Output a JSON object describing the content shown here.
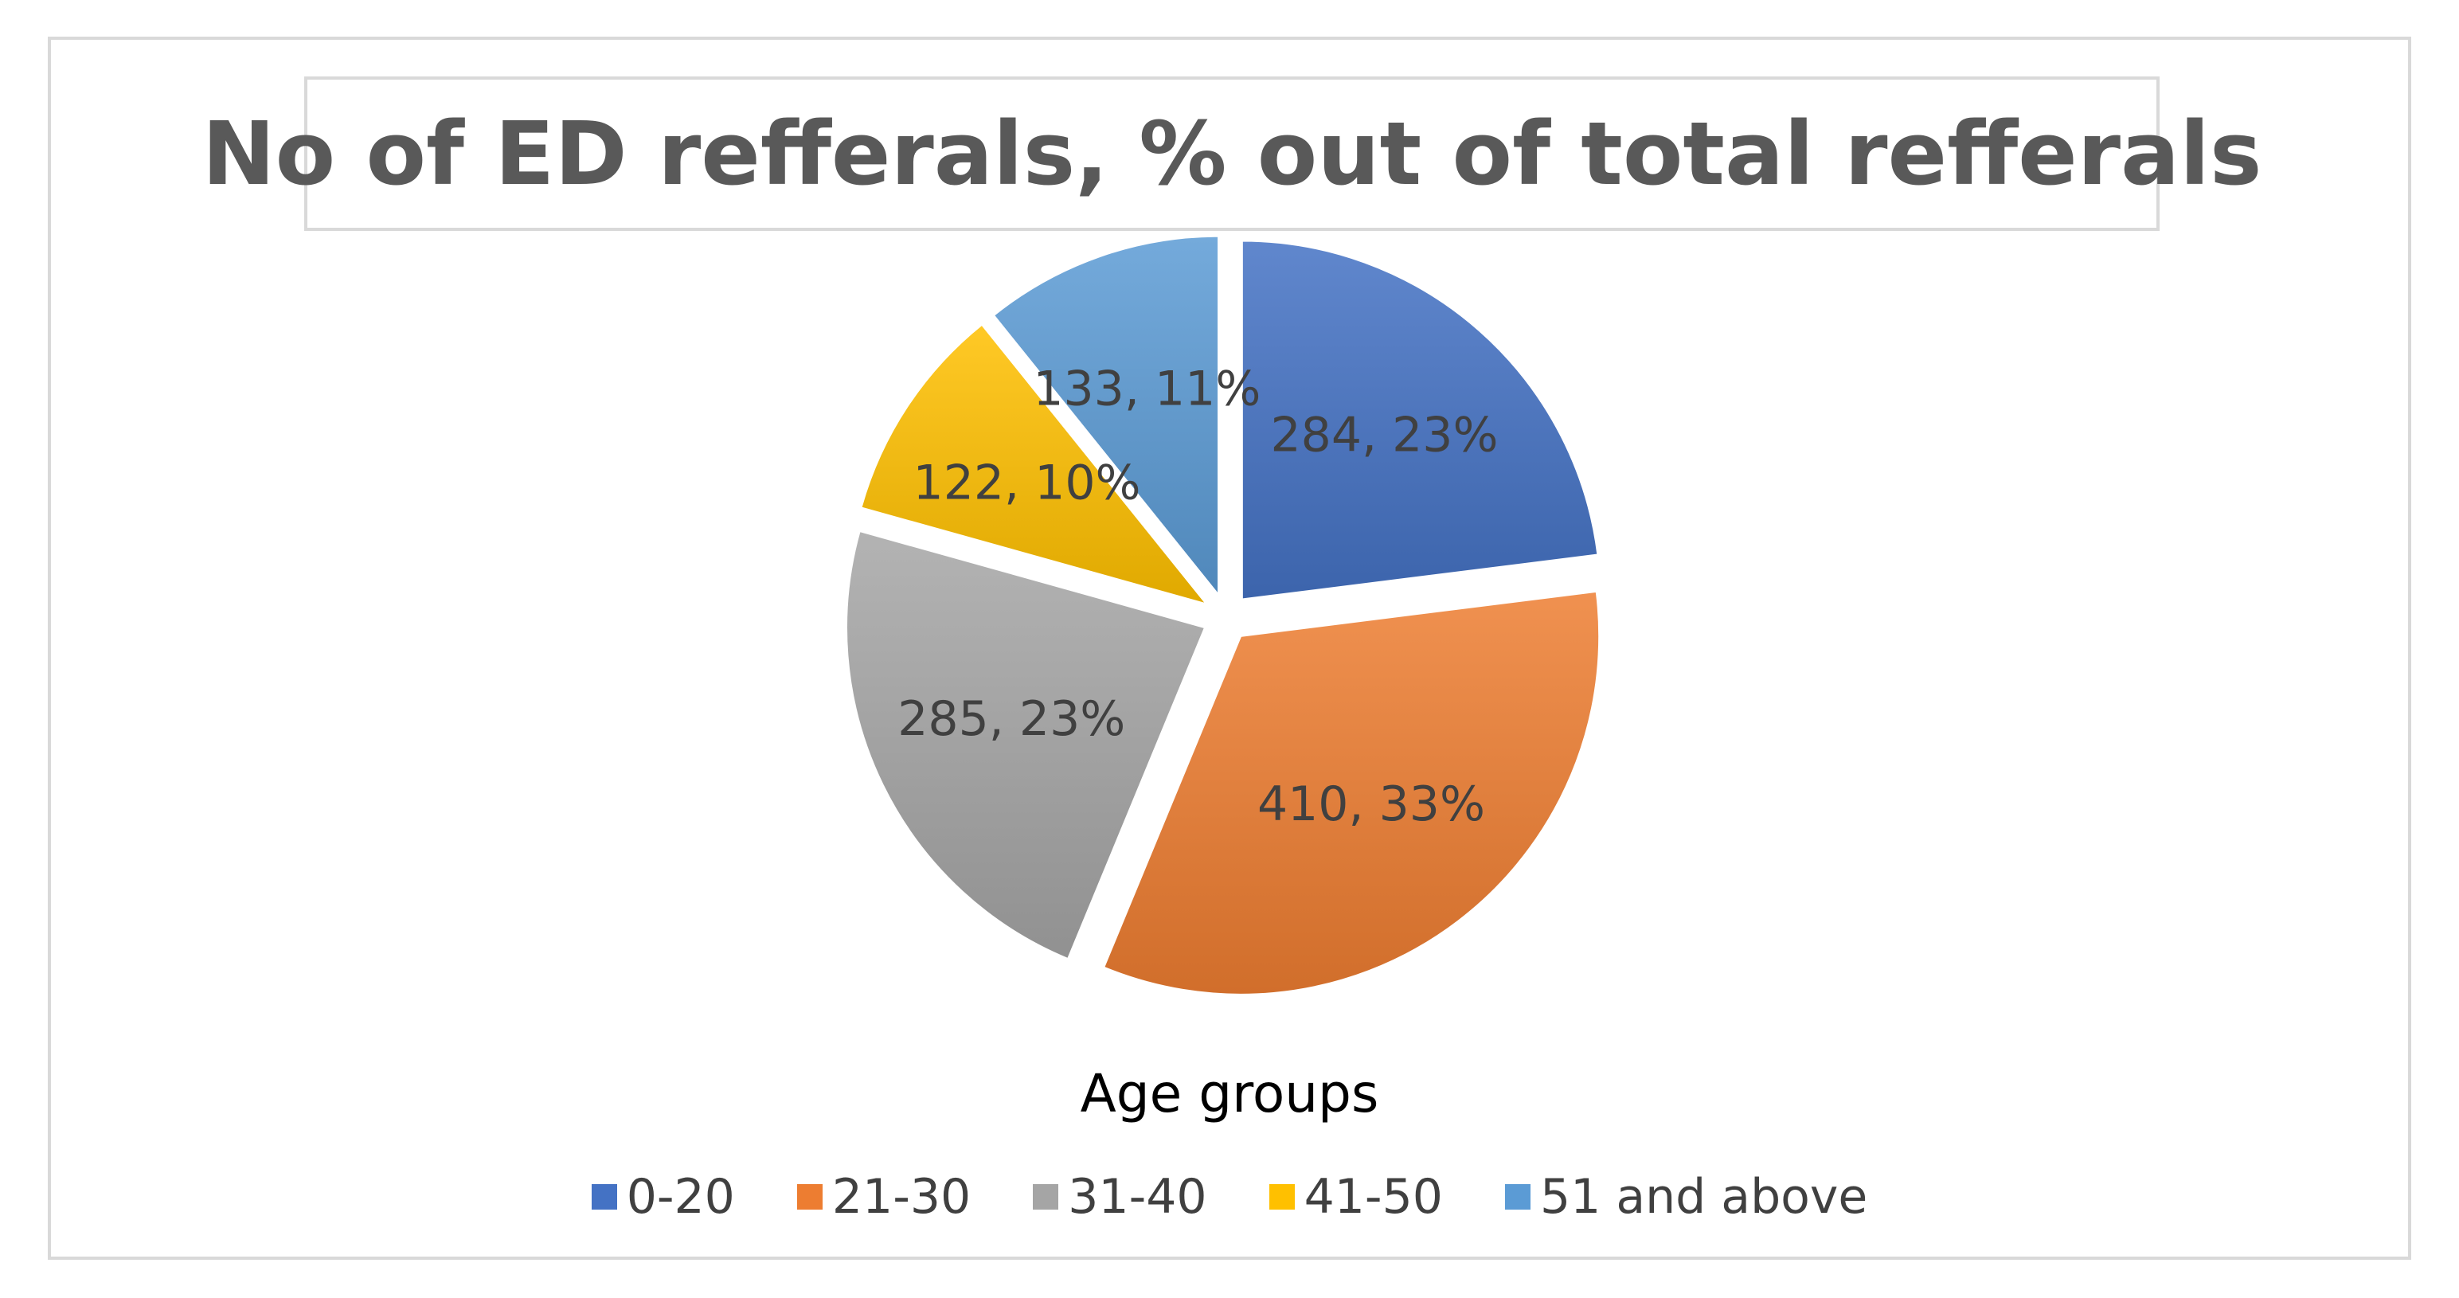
{
  "chart_data": {
    "type": "pie",
    "title": "No of ED refferals, % out of total refferals",
    "legend_title": "Age groups",
    "legend_position": "bottom",
    "slices": [
      {
        "label": "0-20",
        "value": 284,
        "percent": 23,
        "data_label": "284, 23%",
        "color": "#4472c4"
      },
      {
        "label": "21-30",
        "value": 410,
        "percent": 33,
        "data_label": "410, 33%",
        "color": "#ed7d31"
      },
      {
        "label": "31-40",
        "value": 285,
        "percent": 23,
        "data_label": "285, 23%",
        "color": "#a5a5a5"
      },
      {
        "label": "41-50",
        "value": 122,
        "percent": 10,
        "data_label": "122, 10%",
        "color": "#ffc000"
      },
      {
        "label": "51 and above",
        "value": 133,
        "percent": 11,
        "data_label": "133, 11%",
        "color": "#5b9bd5"
      }
    ]
  }
}
